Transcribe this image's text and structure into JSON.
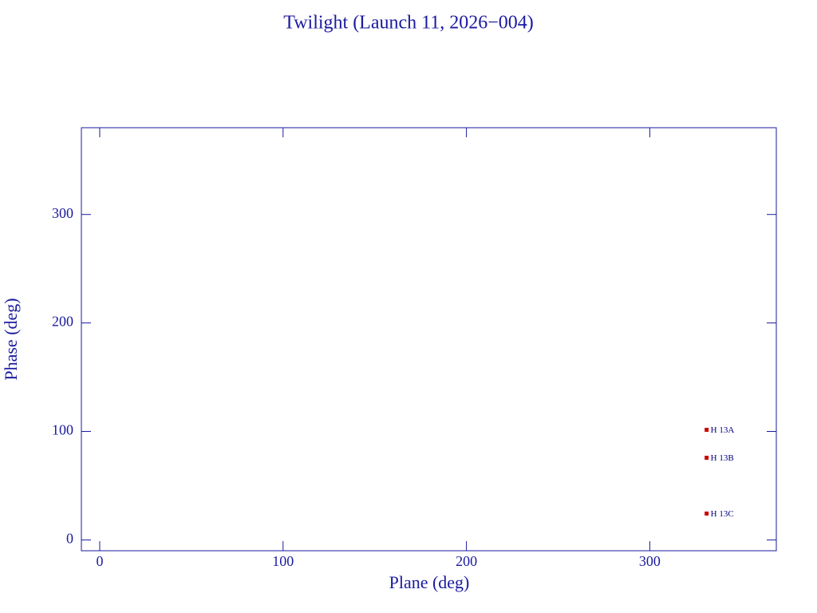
{
  "chart_data": {
    "type": "scatter",
    "title": "Twilight (Launch 11, 2026−004)",
    "x_label": "Plane (deg)",
    "y_label": "Phase (deg)",
    "x": [
      331,
      331,
      331
    ],
    "values": [
      101.5,
      75.7,
      24.3
    ],
    "point_labels": [
      "H 13A",
      "H 13B",
      "H 13C"
    ],
    "color": "#cc0000",
    "label_color": "#000080",
    "axis_color": "#1a1aa0",
    "xlim": [
      -10,
      369
    ],
    "ylim": [
      -10,
      380
    ],
    "xticks": [
      0,
      100,
      200,
      300
    ],
    "yticks": [
      0,
      100,
      200,
      300
    ]
  }
}
